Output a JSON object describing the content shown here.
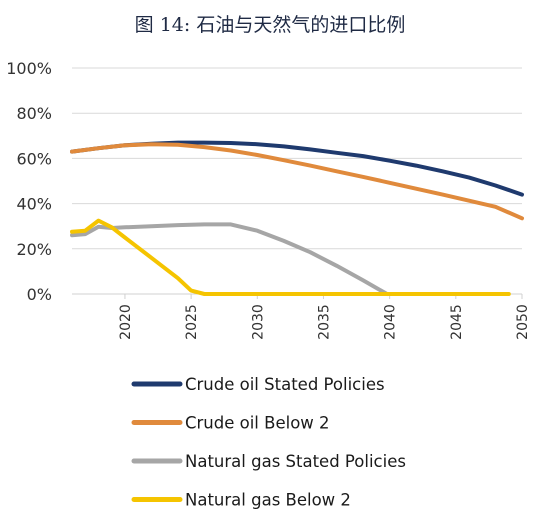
{
  "chart_data": {
    "type": "line",
    "title": "图 14: 石油与天然气的进口比例",
    "xlabel": "",
    "ylabel": "",
    "xlim": [
      2016,
      2050
    ],
    "ylim": [
      0,
      100
    ],
    "x_ticks": [
      "2020",
      "2025",
      "2030",
      "2035",
      "2040",
      "2045",
      "2050"
    ],
    "y_ticks": [
      "0%",
      "20%",
      "40%",
      "60%",
      "80%",
      "100%"
    ],
    "grid": "horizontal",
    "legend": "bottom",
    "series": [
      {
        "name": "Crude oil Stated Policies",
        "color": "#1f3a6e",
        "x": [
          2016,
          2018,
          2020,
          2022,
          2024,
          2026,
          2028,
          2030,
          2032,
          2034,
          2036,
          2038,
          2040,
          2042,
          2044,
          2046,
          2048,
          2050
        ],
        "values": [
          63,
          64.5,
          65.8,
          66.5,
          67,
          67,
          66.8,
          66.3,
          65.3,
          64,
          62.5,
          61,
          59,
          56.8,
          54.3,
          51.5,
          48,
          44
        ]
      },
      {
        "name": "Crude oil Below 2",
        "color": "#e08a3c",
        "x": [
          2016,
          2018,
          2020,
          2022,
          2024,
          2026,
          2028,
          2030,
          2032,
          2034,
          2036,
          2038,
          2040,
          2042,
          2044,
          2046,
          2048,
          2050
        ],
        "values": [
          63,
          64.5,
          65.8,
          66.3,
          66,
          65,
          63.5,
          61.5,
          59.2,
          56.8,
          54.3,
          51.8,
          49.2,
          46.6,
          44,
          41.3,
          38.6,
          33.5
        ]
      },
      {
        "name": "Natural gas Stated Policies",
        "color": "#a6a6a6",
        "x": [
          2016,
          2017,
          2018,
          2019,
          2020,
          2022,
          2024,
          2026,
          2028,
          2030,
          2032,
          2034,
          2036,
          2038,
          2039.8
        ],
        "values": [
          26,
          26.5,
          29.8,
          29.2,
          29.5,
          30,
          30.5,
          30.8,
          30.8,
          28,
          23.5,
          18.5,
          12.5,
          6,
          0
        ]
      },
      {
        "name": "Natural gas Below 2",
        "color": "#f5c400",
        "x": [
          2016,
          2017,
          2018,
          2019,
          2020,
          2022,
          2024,
          2025,
          2026,
          2030,
          2035,
          2040,
          2045,
          2049
        ],
        "values": [
          27.5,
          28,
          32.5,
          29.5,
          25,
          16,
          7,
          1.5,
          0,
          0,
          0,
          0,
          0,
          0
        ]
      }
    ]
  }
}
